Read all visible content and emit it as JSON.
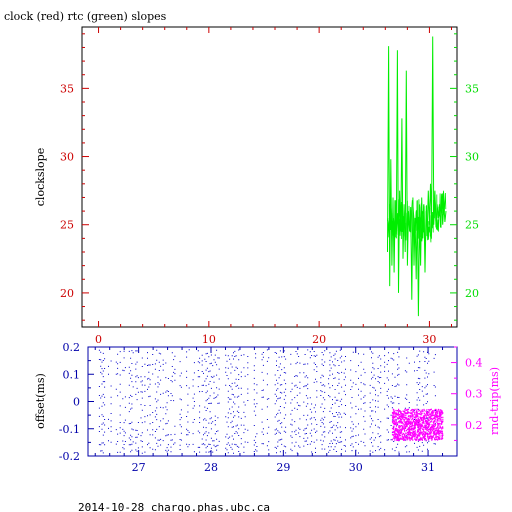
{
  "title": "clock (red) rtc (green) slopes",
  "footer": "2014-10-28 chargo.phas.ubc.ca",
  "colors": {
    "frame": "#000000",
    "red_axis": "#cc0000",
    "green_axis": "#00dd00",
    "green_series": "#00ee00",
    "blue_axis": "#0000aa",
    "blue_series": "#0000cc",
    "magenta": "#ff00ff"
  },
  "chart_data": [
    {
      "type": "line",
      "ylabel": "clockslope",
      "xlim": [
        -1.5,
        32.5
      ],
      "ylim": [
        17.5,
        39.5
      ],
      "x_ticks": [
        0,
        10,
        20,
        30
      ],
      "y_ticks_left": [
        20,
        25,
        30,
        35
      ],
      "y_ticks_right": [
        20,
        25,
        30,
        35
      ],
      "series": [
        {
          "color": "green",
          "x": [
            26.2,
            26.3,
            26.4,
            26.5,
            26.6,
            26.7,
            26.8,
            26.9,
            27.0,
            27.1,
            27.2,
            27.3,
            27.4,
            27.5,
            27.6,
            27.7,
            27.8,
            27.9,
            28.0,
            28.1,
            28.2,
            28.3,
            28.4,
            28.5,
            28.6,
            28.7,
            28.8,
            28.9,
            29.0,
            29.1,
            29.2,
            29.3,
            29.4,
            29.5,
            29.6,
            29.7,
            29.8,
            29.9,
            30.0,
            30.1,
            30.2,
            30.3,
            30.4,
            30.5,
            30.6,
            30.7,
            30.8,
            30.9,
            31.0,
            31.1,
            31.2,
            31.3,
            31.4,
            31.5
          ],
          "values": [
            23.0,
            38.1,
            20.5,
            29.8,
            22.0,
            27.0,
            21.5,
            26.8,
            24.0,
            37.8,
            20.0,
            27.5,
            24.5,
            32.8,
            22.5,
            26.5,
            23.0,
            36.3,
            22.0,
            26.0,
            24.5,
            26.3,
            19.5,
            27.0,
            22.0,
            25.5,
            21.0,
            26.8,
            18.3,
            25.5,
            22.0,
            27.0,
            24.0,
            26.5,
            21.5,
            26.0,
            24.5,
            27.5,
            25.0,
            28.0,
            25.5,
            38.8,
            25.0,
            27.5,
            24.8,
            26.5,
            25.5,
            26.5,
            24.8,
            26.8,
            25.0,
            26.5,
            25.2,
            26.0
          ]
        }
      ]
    },
    {
      "type": "scatter",
      "ylabel_left": "offset(ms)",
      "ylabel_right": "rnd-trip(ms)",
      "xlim": [
        26.3,
        31.4
      ],
      "ylim_left": [
        -0.2,
        0.2
      ],
      "ylim_right": [
        0.1,
        0.45
      ],
      "x_ticks": [
        27,
        28,
        29,
        30,
        31
      ],
      "y_ticks_left": [
        -0.2,
        -0.1,
        0,
        0.1,
        0.2
      ],
      "y_ticks_right": [
        0.2,
        0.3,
        0.4
      ],
      "series": [
        {
          "color": "blue",
          "axis": "left",
          "x_range": [
            26.45,
            31.2
          ],
          "y_range": [
            -0.19,
            0.19
          ]
        },
        {
          "color": "magenta",
          "axis": "right",
          "x_range": [
            30.5,
            31.2
          ],
          "y_range": [
            0.15,
            0.25
          ]
        }
      ]
    }
  ]
}
